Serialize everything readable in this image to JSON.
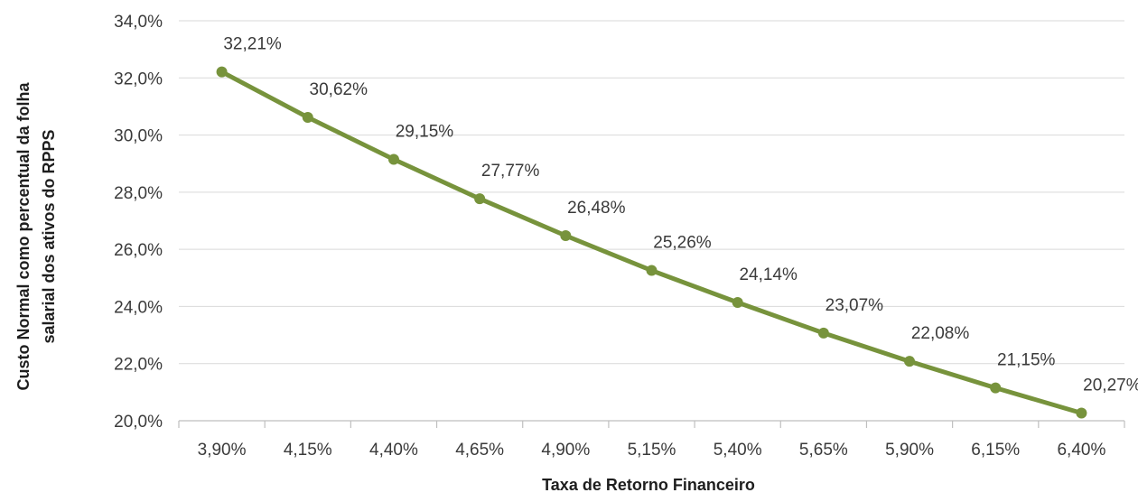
{
  "chart_data": {
    "type": "line",
    "xlabel": "Taxa de Retorno Financeiro",
    "ylabel_lines": [
      "Custo Normal como percentual da folha",
      "salarial dos ativos do RPPS"
    ],
    "categories": [
      "3,90%",
      "4,15%",
      "4,40%",
      "4,65%",
      "4,90%",
      "5,15%",
      "5,40%",
      "5,65%",
      "5,90%",
      "6,15%",
      "6,40%"
    ],
    "values": [
      32.21,
      30.62,
      29.15,
      27.77,
      26.48,
      25.26,
      24.14,
      23.07,
      22.08,
      21.15,
      20.27
    ],
    "data_labels": [
      "32,21%",
      "30,62%",
      "29,15%",
      "27,77%",
      "26,48%",
      "25,26%",
      "24,14%",
      "23,07%",
      "22,08%",
      "21,15%",
      "20,27%"
    ],
    "ylim": [
      20,
      34
    ],
    "yticks": [
      20,
      22,
      24,
      26,
      28,
      30,
      32,
      34
    ],
    "ytick_labels": [
      "20,0%",
      "22,0%",
      "24,0%",
      "26,0%",
      "28,0%",
      "30,0%",
      "32,0%",
      "34,0%"
    ],
    "grid": "horizontal",
    "legend": "none",
    "colors": {
      "line": "#77933c",
      "grid": "#d9d9d9",
      "axis": "#bfbfbf"
    }
  }
}
